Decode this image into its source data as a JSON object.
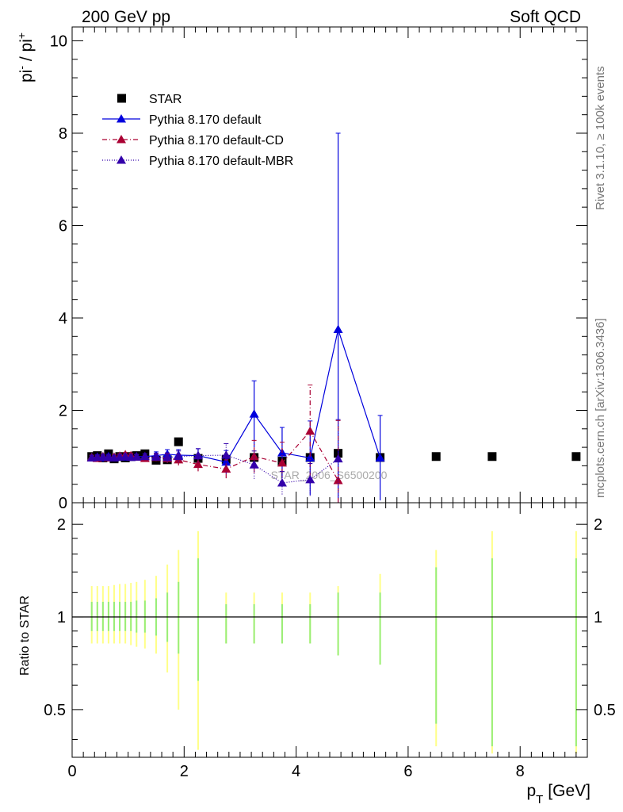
{
  "header": {
    "left_label": "200 GeV pp",
    "right_label": "Soft QCD",
    "side_label_top": "Rivet 3.1.10, ≥ 100k events",
    "side_label_bottom": "mcplots.cern.ch [arXiv:1306.3436]",
    "watermark": "STAR_2006_S6500200"
  },
  "colors": {
    "star": "#000000",
    "default": "#0000dd",
    "cd": "#aa0033",
    "mbr": "#3300aa",
    "band_green": "#99ee77",
    "band_yellow": "#ffff88",
    "frame": "#000000",
    "side_text": "#777777"
  },
  "chart_data": [
    {
      "type": "line",
      "panel": "main",
      "xlabel_main": "p",
      "xlabel_sub": "T",
      "xlabel_unit": "[GeV]",
      "ylabel_base1": "pi",
      "ylabel_sup1": "-",
      "ylabel_mid": " / pi",
      "ylabel_sup2": "+",
      "xlim": [
        0,
        9.2
      ],
      "ylim": [
        0,
        10.3
      ],
      "x_ticks": [
        0,
        2,
        4,
        6,
        8
      ],
      "x_tick_labels": [
        "0",
        "2",
        "4",
        "6",
        "8"
      ],
      "y_ticks": [
        0,
        2,
        4,
        6,
        8,
        10
      ],
      "y_tick_labels": [
        "0",
        "2",
        "4",
        "6",
        "8",
        "10"
      ],
      "legend_position": "top-left",
      "series": [
        {
          "name": "STAR",
          "style": "markers",
          "marker": "square",
          "x": [
            0.35,
            0.45,
            0.55,
            0.65,
            0.75,
            0.85,
            0.95,
            1.05,
            1.15,
            1.3,
            1.5,
            1.7,
            1.9,
            2.25,
            2.75,
            3.25,
            3.75,
            4.25,
            4.75,
            5.5,
            6.5,
            7.5,
            9.0
          ],
          "y": [
            1.0,
            1.02,
            0.97,
            1.06,
            0.95,
            1.0,
            0.97,
            1.0,
            1.02,
            1.06,
            0.92,
            0.93,
            1.32,
            0.96,
            0.94,
            0.98,
            0.9,
            0.98,
            1.07,
            0.98,
            1.0,
            1.0,
            1.0
          ]
        },
        {
          "name": "Pythia 8.170 default",
          "style": "solid",
          "marker": "triangle",
          "x": [
            0.35,
            0.45,
            0.55,
            0.65,
            0.75,
            0.85,
            0.95,
            1.05,
            1.15,
            1.3,
            1.5,
            1.7,
            1.9,
            2.25,
            2.75,
            3.25,
            3.75,
            4.25,
            4.75,
            5.5
          ],
          "y": [
            0.98,
            0.99,
            0.97,
            1.0,
            0.98,
            1.0,
            0.99,
            1.01,
            1.0,
            1.0,
            1.02,
            1.05,
            1.03,
            1.02,
            0.88,
            1.92,
            1.08,
            0.97,
            3.75,
            0.97
          ],
          "err": [
            0.05,
            0.05,
            0.05,
            0.05,
            0.05,
            0.05,
            0.05,
            0.05,
            0.05,
            0.06,
            0.08,
            0.1,
            0.12,
            0.15,
            0.25,
            0.72,
            0.55,
            0.8,
            4.25,
            0.92
          ]
        },
        {
          "name": "Pythia 8.170 default-CD",
          "style": "dashdot",
          "marker": "triangle",
          "x": [
            0.35,
            0.45,
            0.55,
            0.65,
            0.75,
            0.85,
            0.95,
            1.05,
            1.15,
            1.3,
            1.5,
            1.7,
            1.9,
            2.25,
            2.75,
            3.25,
            3.75,
            4.25,
            4.75
          ],
          "y": [
            0.98,
            0.96,
            1.0,
            0.97,
            0.99,
            1.01,
            1.04,
            1.02,
            0.99,
            0.96,
            0.98,
            0.96,
            0.93,
            0.83,
            0.73,
            1.0,
            0.86,
            1.55,
            0.48
          ],
          "err": [
            0.05,
            0.05,
            0.05,
            0.05,
            0.05,
            0.05,
            0.05,
            0.05,
            0.05,
            0.06,
            0.08,
            0.1,
            0.12,
            0.15,
            0.2,
            0.35,
            0.45,
            1.0,
            1.3
          ]
        },
        {
          "name": "Pythia 8.170 default-MBR",
          "style": "dotted",
          "marker": "triangle",
          "x": [
            0.35,
            0.45,
            0.55,
            0.65,
            0.75,
            0.85,
            0.95,
            1.05,
            1.15,
            1.3,
            1.5,
            1.7,
            1.9,
            2.25,
            2.75,
            3.25,
            3.75,
            4.25,
            4.75
          ],
          "y": [
            0.97,
            0.98,
            0.99,
            0.98,
            0.97,
            0.99,
            1.0,
            0.98,
            0.99,
            1.0,
            0.99,
            0.98,
            1.0,
            1.02,
            1.03,
            0.82,
            0.43,
            0.5,
            0.95
          ],
          "err": [
            0.05,
            0.05,
            0.05,
            0.05,
            0.05,
            0.05,
            0.05,
            0.05,
            0.05,
            0.06,
            0.08,
            0.1,
            0.12,
            0.15,
            0.25,
            0.3,
            0.25,
            0.35,
            0.85
          ]
        }
      ]
    },
    {
      "type": "line",
      "panel": "ratio",
      "ylabel": "Ratio to STAR",
      "xlim": [
        0,
        9.2
      ],
      "ylim": [
        0.35,
        2.35
      ],
      "log_y": true,
      "y_ticks": [
        0.5,
        1,
        2
      ],
      "y_tick_labels": [
        "0.5",
        "1",
        "2"
      ],
      "reference_line": 1.0,
      "bands": {
        "x": [
          0.35,
          0.45,
          0.55,
          0.65,
          0.75,
          0.85,
          0.95,
          1.05,
          1.15,
          1.3,
          1.5,
          1.7,
          1.9,
          2.25,
          2.75,
          3.25,
          3.75,
          4.25,
          4.75,
          5.5,
          6.5,
          7.5,
          9.0
        ],
        "green_lo": [
          0.9,
          0.9,
          0.9,
          0.9,
          0.9,
          0.9,
          0.9,
          0.9,
          0.89,
          0.89,
          0.87,
          0.83,
          0.76,
          0.62,
          0.82,
          0.82,
          0.82,
          0.82,
          0.75,
          0.7,
          0.45,
          0.38,
          0.38
        ],
        "green_hi": [
          1.12,
          1.12,
          1.12,
          1.12,
          1.12,
          1.12,
          1.12,
          1.12,
          1.13,
          1.13,
          1.15,
          1.2,
          1.3,
          1.55,
          1.1,
          1.1,
          1.1,
          1.1,
          1.2,
          1.2,
          1.45,
          1.55,
          1.55
        ],
        "yellow_lo": [
          0.82,
          0.82,
          0.82,
          0.82,
          0.82,
          0.82,
          0.82,
          0.81,
          0.8,
          0.79,
          0.76,
          0.66,
          0.5,
          0.37,
          0.82,
          0.82,
          0.82,
          0.82,
          0.75,
          0.7,
          0.38,
          0.36,
          0.36
        ],
        "yellow_hi": [
          1.26,
          1.26,
          1.26,
          1.26,
          1.27,
          1.28,
          1.28,
          1.29,
          1.3,
          1.32,
          1.36,
          1.48,
          1.65,
          1.9,
          1.2,
          1.2,
          1.2,
          1.2,
          1.26,
          1.38,
          1.65,
          1.9,
          1.9
        ]
      }
    }
  ]
}
